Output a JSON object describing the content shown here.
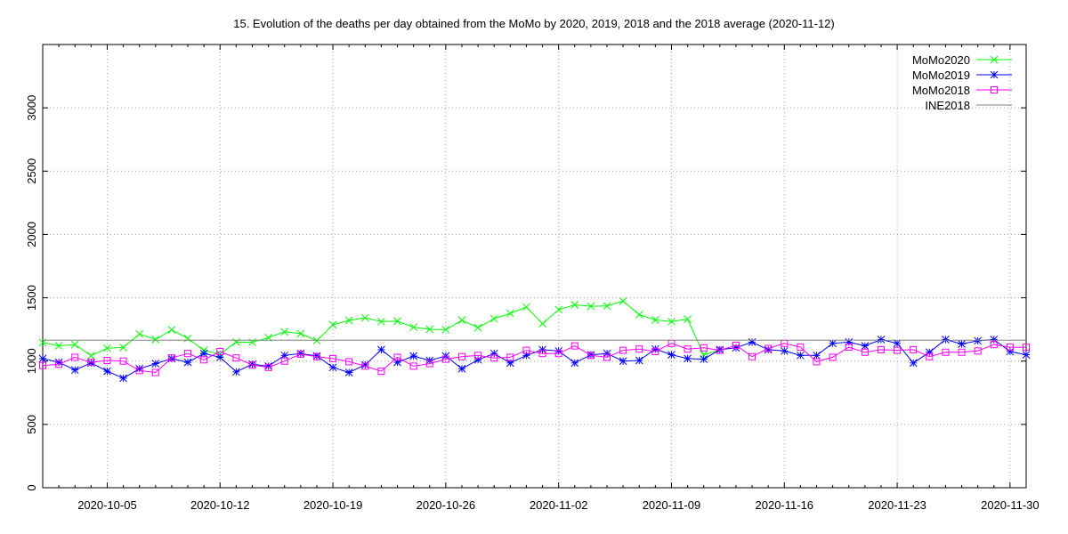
{
  "chart_data": {
    "type": "line",
    "title": "15. Evolution of the deaths per day obtained from the MoMo by 2020, 2019, 2018 and the 2018 average (2020-11-12)",
    "xlabel": "",
    "ylabel": "",
    "x_start": "2020-10-01",
    "x_end": "2020-11-30",
    "xlim": [
      0,
      61
    ],
    "ylim": [
      0,
      3500
    ],
    "yticks": [
      0,
      500,
      1000,
      1500,
      2000,
      2500,
      3000
    ],
    "xtick_days": [
      4,
      11,
      18,
      25,
      32,
      39,
      46,
      53,
      60
    ],
    "xtick_labels": [
      "2020-10-05",
      "2020-10-12",
      "2020-10-19",
      "2020-10-26",
      "2020-11-02",
      "2020-11-09",
      "2020-11-16",
      "2020-11-23",
      "2020-11-30"
    ],
    "grid": true,
    "legend_position": "top-right",
    "series": [
      {
        "name": "MoMo2020",
        "color": "#00ff00",
        "marker": "x",
        "x": [
          0,
          1,
          2,
          3,
          4,
          5,
          6,
          7,
          8,
          9,
          10,
          11,
          12,
          13,
          14,
          15,
          16,
          17,
          18,
          19,
          20,
          21,
          22,
          23,
          24,
          25,
          26,
          27,
          28,
          29,
          30,
          31,
          32,
          33,
          34,
          35,
          36,
          37,
          38,
          39,
          40,
          41,
          42
        ],
        "values": [
          1146,
          1121,
          1130,
          1043,
          1102,
          1108,
          1214,
          1170,
          1247,
          1179,
          1085,
          1056,
          1150,
          1149,
          1185,
          1231,
          1217,
          1162,
          1287,
          1321,
          1342,
          1312,
          1315,
          1268,
          1251,
          1248,
          1323,
          1264,
          1335,
          1377,
          1427,
          1296,
          1406,
          1444,
          1433,
          1436,
          1474,
          1367,
          1325,
          1312,
          1331,
          1050,
          1088
        ]
      },
      {
        "name": "MoMo2019",
        "color": "#0000ff",
        "marker": "*",
        "x": [
          0,
          1,
          2,
          3,
          4,
          5,
          6,
          7,
          8,
          9,
          10,
          11,
          12,
          13,
          14,
          15,
          16,
          17,
          18,
          19,
          20,
          21,
          22,
          23,
          24,
          25,
          26,
          27,
          28,
          29,
          30,
          31,
          32,
          33,
          34,
          35,
          36,
          37,
          38,
          39,
          40,
          41,
          42,
          43,
          44,
          45,
          46,
          47,
          48,
          49,
          50,
          51,
          52,
          53,
          54,
          55,
          56,
          57,
          58,
          59,
          60,
          61
        ],
        "values": [
          1020,
          990,
          930,
          985,
          920,
          865,
          940,
          980,
          1020,
          990,
          1060,
          1030,
          915,
          975,
          960,
          1045,
          1060,
          1040,
          950,
          910,
          970,
          1090,
          990,
          1040,
          1005,
          1040,
          940,
          1010,
          1060,
          985,
          1045,
          1090,
          1080,
          985,
          1050,
          1060,
          1000,
          1005,
          1095,
          1050,
          1020,
          1015,
          1090,
          1105,
          1150,
          1090,
          1080,
          1045,
          1045,
          1140,
          1150,
          1120,
          1170,
          1140,
          985,
          1070,
          1170,
          1135,
          1160,
          1170,
          1075,
          1050
        ]
      },
      {
        "name": "MoMo2018",
        "color": "#ff00ff",
        "marker": "square",
        "x": [
          0,
          1,
          2,
          3,
          4,
          5,
          6,
          7,
          8,
          9,
          10,
          11,
          12,
          13,
          14,
          15,
          16,
          17,
          18,
          19,
          20,
          21,
          22,
          23,
          24,
          25,
          26,
          27,
          28,
          29,
          30,
          31,
          32,
          33,
          34,
          35,
          36,
          37,
          38,
          39,
          40,
          41,
          42,
          43,
          44,
          45,
          46,
          47,
          48,
          49,
          50,
          51,
          52,
          53,
          54,
          55,
          56,
          57,
          58,
          59,
          60,
          61
        ],
        "values": [
          965,
          975,
          1030,
          990,
          1005,
          1000,
          925,
          910,
          1025,
          1060,
          1010,
          1075,
          1025,
          970,
          950,
          1000,
          1055,
          1035,
          1020,
          995,
          960,
          920,
          1030,
          960,
          980,
          1015,
          1035,
          1045,
          1025,
          1030,
          1085,
          1060,
          1060,
          1120,
          1045,
          1030,
          1085,
          1095,
          1075,
          1140,
          1095,
          1105,
          1085,
          1125,
          1035,
          1100,
          1140,
          1110,
          995,
          1030,
          1110,
          1070,
          1090,
          1085,
          1090,
          1035,
          1070,
          1070,
          1080,
          1130,
          1110,
          1110
        ]
      },
      {
        "name": "INE2018",
        "color": "#808080",
        "marker": "none",
        "constant": 1165
      }
    ]
  }
}
